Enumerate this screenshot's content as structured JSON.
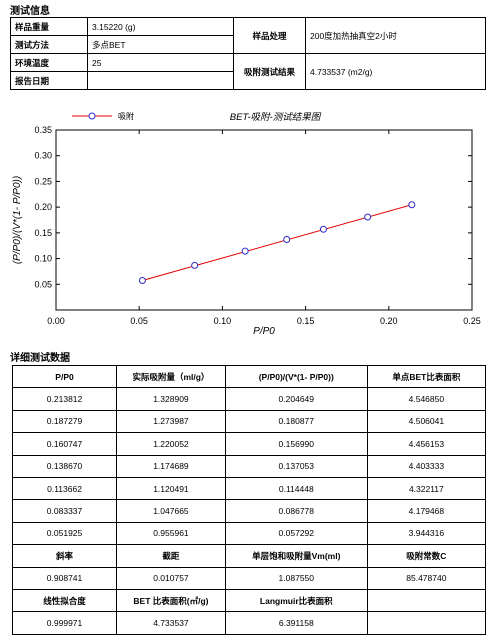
{
  "section_info": "测试信息",
  "info": {
    "mass_label": "样品重量",
    "mass_value": "3.15220 (g)",
    "method_label": "测试方法",
    "method_value": "多点BET",
    "temp_label": "环境温度",
    "temp_value": "25",
    "date_label": "报告日期",
    "date_value": "",
    "treat_label": "样品处理",
    "treat_value": "200度加热抽真空2小时",
    "result_label": "吸附测试结果",
    "result_value": "4.733537 (m2/g)"
  },
  "chart_data": {
    "type": "scatter",
    "title": "BET-吸附-测试结果图",
    "xlabel": "P/P0",
    "ylabel": "(P/P0)/(V*(1- P/P0))",
    "xlim": [
      0,
      0.25
    ],
    "ylim": [
      0.0,
      0.35
    ],
    "xticks": [
      "0.00",
      "0.05",
      "0.10",
      "0.15",
      "0.20",
      "0.25"
    ],
    "yticks": [
      "0.05",
      "0.10",
      "0.15",
      "0.20",
      "0.25",
      "0.30",
      "0.35"
    ],
    "legend": "吸附",
    "legend_position": "top-left",
    "colors": {
      "line": "#e60000",
      "marker": "#2d2dc8"
    },
    "x": [
      0.051925,
      0.083337,
      0.113662,
      0.13867,
      0.160747,
      0.187279,
      0.213812
    ],
    "y": [
      0.057292,
      0.086778,
      0.114448,
      0.137053,
      0.15699,
      0.180877,
      0.204649
    ],
    "fit_line": {
      "x": [
        0.051925,
        0.213812
      ],
      "y": [
        0.057292,
        0.204649
      ]
    }
  },
  "section_detail": "详细测试数据",
  "detail": {
    "headers": [
      "P/P0",
      "实际吸附量（ml/g）",
      "(P/P0)/(V*(1- P/P0))",
      "单点BET比表面积"
    ],
    "rows": [
      [
        "0.213812",
        "1.328909",
        "0.204649",
        "4.546850"
      ],
      [
        "0.187279",
        "1.273987",
        "0.180877",
        "4.506041"
      ],
      [
        "0.160747",
        "1.220052",
        "0.156990",
        "4.456153"
      ],
      [
        "0.138670",
        "1.174689",
        "0.137053",
        "4.403333"
      ],
      [
        "0.113662",
        "1.120491",
        "0.114448",
        "4.322117"
      ],
      [
        "0.083337",
        "1.047665",
        "0.086778",
        "4.179468"
      ],
      [
        "0.051925",
        "0.955961",
        "0.057292",
        "3.944316"
      ]
    ],
    "headers2": [
      "斜率",
      "截距",
      "单层饱和吸附量Vm(ml)",
      "吸附常数C"
    ],
    "row2": [
      "0.908741",
      "0.010757",
      "1.087550",
      "85.478740"
    ],
    "headers3": [
      "线性拟合度",
      "BET 比表面积(㎡/g)",
      "Langmuir比表面积",
      ""
    ],
    "row3": [
      "0.999971",
      "4.733537",
      "6.391158",
      ""
    ]
  }
}
